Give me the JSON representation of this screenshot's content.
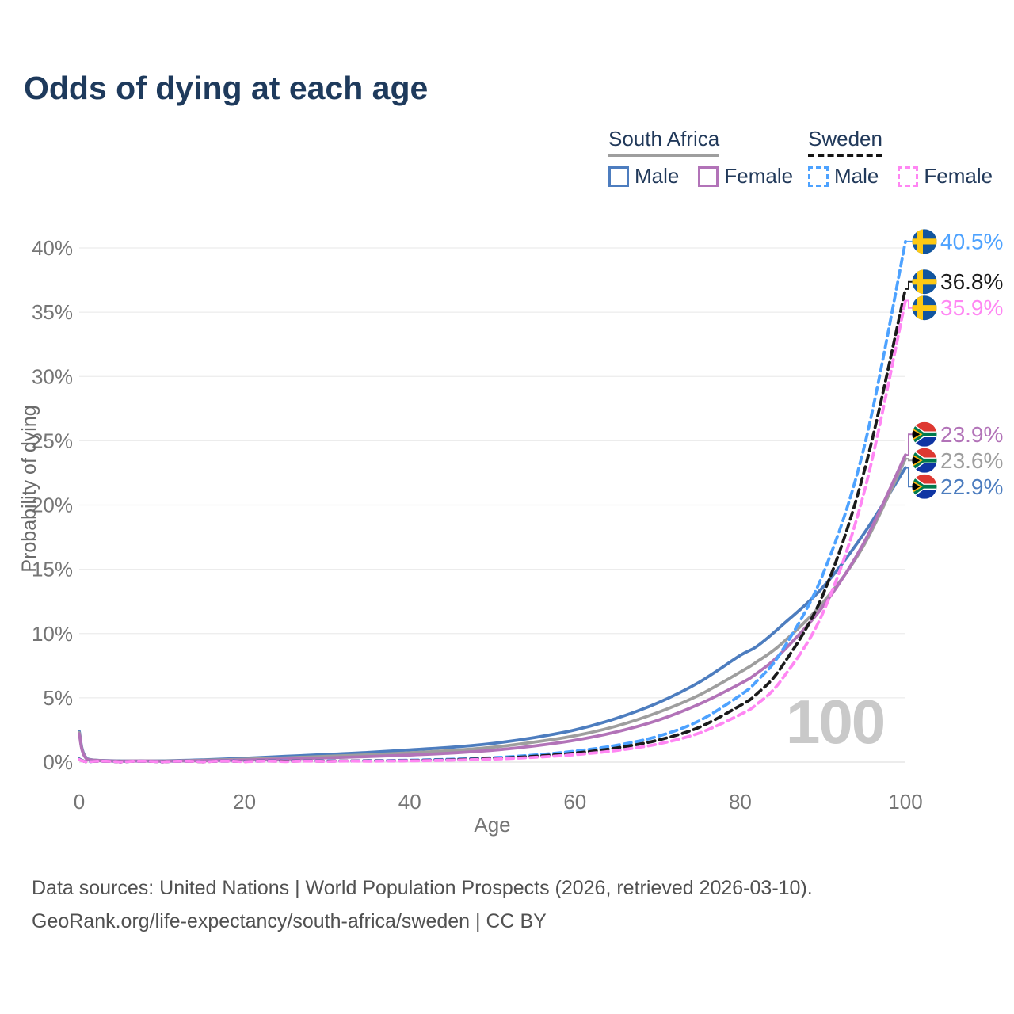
{
  "title": "Odds of dying at each age",
  "watermark": "100",
  "legend": {
    "groups": [
      {
        "name": "South Africa",
        "line_style": "solid",
        "underline_color": "#9e9e9e",
        "items": [
          {
            "label": "Male",
            "color": "#4d7dbf"
          },
          {
            "label": "Female",
            "color": "#b273b8"
          }
        ]
      },
      {
        "name": "Sweden",
        "line_style": "dashed",
        "underline_color": "#141414",
        "items": [
          {
            "label": "Male",
            "color": "#4da2ff"
          },
          {
            "label": "Female",
            "color": "#ff86f3"
          }
        ]
      }
    ]
  },
  "footer": {
    "line1": "Data sources: United Nations | World Population Prospects (2026, retrieved 2026-03-10).",
    "line2": "GeoRank.org/life-expectancy/south-africa/sweden | CC BY"
  },
  "chart_data": {
    "type": "line",
    "title": "Odds of dying at each age",
    "xlabel": "Age",
    "ylabel": "Probability of dying",
    "xlim": [
      0,
      100
    ],
    "ylim": [
      0,
      40
    ],
    "grid": "horizontal",
    "legend_position": "top-right",
    "xticks": [
      {
        "v": 0,
        "label": "0"
      },
      {
        "v": 20,
        "label": "20"
      },
      {
        "v": 40,
        "label": "40"
      },
      {
        "v": 60,
        "label": "60"
      },
      {
        "v": 80,
        "label": "80"
      },
      {
        "v": 100,
        "label": "100"
      }
    ],
    "yticks": [
      {
        "v": 0,
        "label": "0%"
      },
      {
        "v": 5,
        "label": "5%"
      },
      {
        "v": 10,
        "label": "10%"
      },
      {
        "v": 15,
        "label": "15%"
      },
      {
        "v": 20,
        "label": "20%"
      },
      {
        "v": 25,
        "label": "25%"
      },
      {
        "v": 30,
        "label": "30%"
      },
      {
        "v": 35,
        "label": "35%"
      },
      {
        "v": 40,
        "label": "40%"
      }
    ],
    "x": [
      0,
      1,
      5,
      10,
      15,
      20,
      25,
      30,
      35,
      40,
      45,
      50,
      55,
      60,
      65,
      70,
      75,
      80,
      82,
      85,
      90,
      95,
      100
    ],
    "series": [
      {
        "name": "South Africa Male",
        "flag": "za",
        "style": "solid",
        "color": "#4d7dbf",
        "end_label": "22.9%",
        "values": [
          2.4,
          0.25,
          0.1,
          0.1,
          0.18,
          0.3,
          0.45,
          0.6,
          0.75,
          0.95,
          1.15,
          1.45,
          1.9,
          2.5,
          3.4,
          4.6,
          6.2,
          8.3,
          9.0,
          10.6,
          13.6,
          17.8,
          22.9
        ]
      },
      {
        "name": "South Africa Total",
        "flag": "za",
        "style": "solid",
        "color": "#9e9e9e",
        "end_label": "23.6%",
        "values": [
          2.3,
          0.22,
          0.08,
          0.08,
          0.14,
          0.22,
          0.33,
          0.45,
          0.57,
          0.72,
          0.9,
          1.15,
          1.55,
          2.05,
          2.8,
          3.85,
          5.2,
          7.0,
          7.8,
          9.2,
          12.4,
          16.9,
          23.6
        ]
      },
      {
        "name": "South Africa Female",
        "flag": "za",
        "style": "solid",
        "color": "#b273b8",
        "end_label": "23.9%",
        "values": [
          2.2,
          0.2,
          0.07,
          0.07,
          0.11,
          0.16,
          0.24,
          0.33,
          0.43,
          0.55,
          0.7,
          0.92,
          1.25,
          1.7,
          2.35,
          3.25,
          4.5,
          6.1,
          6.9,
          8.5,
          12.1,
          17.1,
          23.9
        ]
      },
      {
        "name": "Sweden Male",
        "flag": "se",
        "style": "dashed",
        "color": "#4da2ff",
        "end_label": "40.5%",
        "values": [
          0.25,
          0.02,
          0.01,
          0.01,
          0.03,
          0.06,
          0.08,
          0.09,
          0.11,
          0.15,
          0.22,
          0.34,
          0.55,
          0.85,
          1.3,
          2.0,
          3.2,
          5.2,
          6.3,
          8.6,
          14.6,
          24.5,
          40.5
        ]
      },
      {
        "name": "Sweden Total",
        "flag": "se",
        "style": "dashed",
        "color": "#1b1b1b",
        "end_label": "36.8%",
        "values": [
          0.22,
          0.02,
          0.01,
          0.01,
          0.02,
          0.05,
          0.06,
          0.07,
          0.09,
          0.12,
          0.18,
          0.28,
          0.45,
          0.7,
          1.1,
          1.7,
          2.7,
          4.4,
          5.3,
          7.4,
          13.0,
          22.6,
          36.8
        ]
      },
      {
        "name": "Sweden Female",
        "flag": "se",
        "style": "dashed",
        "color": "#ff86f3",
        "end_label": "35.9%",
        "values": [
          0.2,
          0.02,
          0.01,
          0.01,
          0.02,
          0.03,
          0.04,
          0.05,
          0.07,
          0.1,
          0.15,
          0.23,
          0.37,
          0.58,
          0.9,
          1.4,
          2.25,
          3.7,
          4.5,
          6.4,
          11.6,
          21.0,
          35.9
        ]
      }
    ]
  }
}
